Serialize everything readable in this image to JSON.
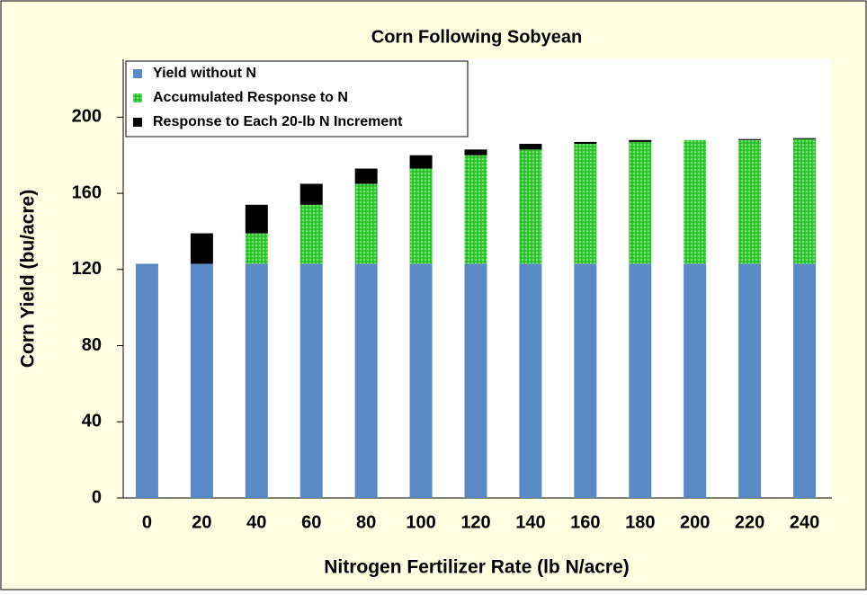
{
  "chart_data": {
    "type": "stacked_bar",
    "title": "Corn Following Sobyean",
    "xlabel": "Nitrogen Fertilizer Rate (lb N/acre)",
    "ylabel": "Corn Yield (bu/acre)",
    "categories": [
      "0",
      "20",
      "40",
      "60",
      "80",
      "100",
      "120",
      "140",
      "160",
      "180",
      "200",
      "220",
      "240"
    ],
    "series": [
      {
        "name": "Yield without N",
        "color": "#5a8ac6",
        "values": [
          123,
          123,
          123,
          123,
          123,
          123,
          123,
          123,
          123,
          123,
          123,
          123,
          123
        ]
      },
      {
        "name": "Accumulated Response to N",
        "color": "#33cc33",
        "values": [
          0,
          0,
          16,
          31,
          42,
          50,
          57,
          60,
          63,
          64,
          65,
          65,
          65.5
        ]
      },
      {
        "name": "Response to Each 20-lb N Increment",
        "color": "#000000",
        "values": [
          0,
          16,
          15,
          11,
          8,
          7,
          3,
          3,
          1,
          1,
          0,
          0.5,
          0.5
        ]
      }
    ],
    "ylim": [
      0,
      220
    ],
    "yticks": [
      0,
      40,
      80,
      120,
      160,
      200
    ],
    "legend": "upper left"
  }
}
